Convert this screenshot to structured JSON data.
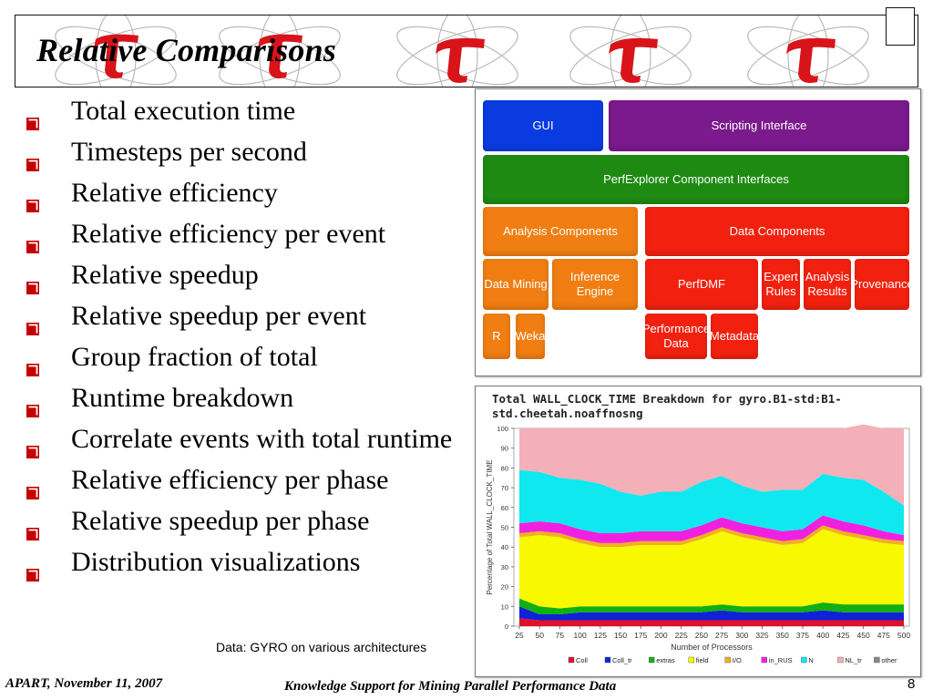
{
  "slide": {
    "title": "Relative Comparisons",
    "bullets": [
      "Total execution time",
      "Timesteps per second",
      "Relative efficiency",
      "Relative efficiency per event",
      "Relative speedup",
      "Relative speedup per event",
      "Group fraction of total",
      "Runtime breakdown",
      "Correlate events with total runtime",
      "Relative efficiency per phase",
      "Relative speedup per phase",
      "Distribution visualizations"
    ],
    "data_caption": "Data: GYRO on various architectures",
    "footer_left": "APART, November 11, 2007",
    "footer_center": "Knowledge Support for Mining Parallel Performance Data",
    "page_number": "8",
    "colors": {
      "bullet_box": "#c40000",
      "tau_red": "#d8141a"
    }
  },
  "architecture": {
    "gui": "GUI",
    "scripting": "Scripting Interface",
    "component_interfaces": "PerfExplorer Component Interfaces",
    "analysis_components": "Analysis Components",
    "data_components": "Data Components",
    "data_mining": "Data Mining",
    "inference_engine": "Inference Engine",
    "perfdmf": "PerfDMF",
    "expert_rules": "Expert Rules",
    "analysis_results": "Analysis Results",
    "provenance": "Provenance",
    "r": "R",
    "weka": "Weka",
    "performance_data": "Performance Data",
    "metadata": "Metadata",
    "colors": {
      "blue": "#0a3be0",
      "purple": "#7a1a8c",
      "green": "#1e8a12",
      "orange": "#f07e12",
      "red": "#f2210f"
    }
  },
  "chart_data": {
    "type": "area",
    "title": "Total WALL_CLOCK_TIME Breakdown for gyro.B1-std:B1-std.cheetah.noaffnosng",
    "xlabel": "Number of Processors",
    "ylabel": "Percentage of Total WALL_CLOCK_TIME",
    "x": [
      25,
      50,
      75,
      100,
      125,
      150,
      175,
      200,
      225,
      250,
      275,
      300,
      325,
      350,
      375,
      400,
      425,
      450,
      475,
      500
    ],
    "x_ticks": [
      "25",
      "50",
      "75",
      "100",
      "125",
      "150",
      "175",
      "200",
      "225",
      "250",
      "275",
      "300",
      "325",
      "350",
      "375",
      "400",
      "425",
      "450",
      "475",
      "500"
    ],
    "y_ticks": [
      "0",
      "10",
      "20",
      "30",
      "40",
      "50",
      "60",
      "70",
      "80",
      "90",
      "100"
    ],
    "ylim": [
      0,
      100
    ],
    "stacked": true,
    "series": [
      {
        "name": "Coll",
        "color": "#e0102a",
        "values": [
          4,
          3,
          3,
          3,
          3,
          3,
          3,
          3,
          3,
          3,
          3,
          3,
          3,
          3,
          3,
          3,
          3,
          3,
          3,
          3
        ]
      },
      {
        "name": "Coll_tr",
        "color": "#1022d8",
        "values": [
          6,
          3,
          3,
          4,
          4,
          4,
          4,
          4,
          4,
          4,
          5,
          4,
          4,
          4,
          4,
          5,
          4,
          4,
          4,
          4
        ]
      },
      {
        "name": "extras",
        "color": "#10b010",
        "values": [
          4,
          4,
          3,
          3,
          3,
          3,
          3,
          3,
          3,
          3,
          3,
          3,
          3,
          3,
          3,
          4,
          4,
          4,
          4,
          4
        ]
      },
      {
        "name": "field",
        "color": "#f8f800",
        "values": [
          31,
          36,
          36,
          32,
          30,
          30,
          31,
          31,
          31,
          34,
          37,
          35,
          33,
          31,
          32,
          37,
          35,
          33,
          31,
          30
        ]
      },
      {
        "name": "I/O",
        "color": "#f0b020",
        "values": [
          2,
          2,
          2,
          2,
          2,
          2,
          2,
          2,
          2,
          2,
          2,
          2,
          2,
          2,
          2,
          2,
          2,
          2,
          2,
          2
        ]
      },
      {
        "name": "in_RUS",
        "color": "#f020e0",
        "values": [
          5,
          5,
          5,
          5,
          5,
          5,
          5,
          5,
          5,
          5,
          5,
          5,
          5,
          5,
          5,
          5,
          5,
          5,
          4,
          3
        ]
      },
      {
        "name": "N",
        "color": "#10e8f0",
        "values": [
          27,
          25,
          23,
          25,
          25,
          21,
          18,
          20,
          20,
          22,
          21,
          19,
          18,
          21,
          20,
          21,
          22,
          23,
          20,
          15
        ]
      },
      {
        "name": "NL_tr",
        "color": "#f4b0b8",
        "values": [
          21,
          22,
          25,
          26,
          28,
          32,
          34,
          32,
          32,
          27,
          24,
          29,
          32,
          31,
          31,
          23,
          25,
          28,
          32,
          39
        ]
      },
      {
        "name": "other",
        "color": "#888888",
        "values": [
          0,
          0,
          0,
          0,
          0,
          0,
          0,
          0,
          0,
          0,
          0,
          0,
          0,
          0,
          0,
          0,
          0,
          0,
          0,
          0
        ]
      }
    ]
  }
}
